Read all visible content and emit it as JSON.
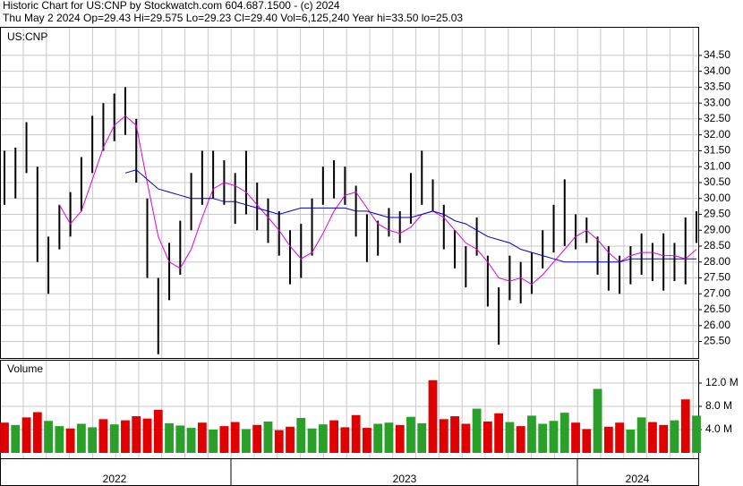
{
  "chart_data": {
    "type": "stock",
    "title": "Historic Chart for US:CNP by Stockwatch.com 604.687.1500 - (c) 2024",
    "subtitle": "Thu May  2 2024   Op=29.43   Hi=29.575   Lo=29.23   Cl=29.40   Vol=6,125,240   Year hi=33.50   lo=25.03",
    "symbol": "US:CNP",
    "volume_label": "Volume",
    "x_axis_labels": [
      "2022",
      "2023",
      "2024"
    ],
    "ylim": [
      24.98,
      35.37
    ],
    "yticks": [
      {
        "value": 25.5,
        "label": "25.50"
      },
      {
        "value": 26,
        "label": "26.00"
      },
      {
        "value": 26.5,
        "label": "26.50"
      },
      {
        "value": 27,
        "label": "27.00"
      },
      {
        "value": 27.5,
        "label": "27.50"
      },
      {
        "value": 28,
        "label": "28.00"
      },
      {
        "value": 28.5,
        "label": "28.50"
      },
      {
        "value": 29,
        "label": "29.00"
      },
      {
        "value": 29.5,
        "label": "29.50"
      },
      {
        "value": 30,
        "label": "30.00"
      },
      {
        "value": 30.5,
        "label": "30.50"
      },
      {
        "value": 31,
        "label": "31.00"
      },
      {
        "value": 31.5,
        "label": "31.50"
      },
      {
        "value": 32,
        "label": "32.00"
      },
      {
        "value": 32.5,
        "label": "32.50"
      },
      {
        "value": 33,
        "label": "33.00"
      },
      {
        "value": 33.5,
        "label": "33.50"
      },
      {
        "value": 34,
        "label": "34.00"
      },
      {
        "value": 34.5,
        "label": "34.50"
      }
    ],
    "bar_color": "#000000",
    "high": [
      31.5,
      31.6,
      32.4,
      31.0,
      28.8,
      29.8,
      30.2,
      31.3,
      32.6,
      33.0,
      33.3,
      33.5,
      32.5,
      30.0,
      27.5,
      28.6,
      29.3,
      30.8,
      31.5,
      31.5,
      31.2,
      30.8,
      31.5,
      30.5,
      30.0,
      29.6,
      29.0,
      29.2,
      30.0,
      31.0,
      31.2,
      31.0,
      30.4,
      29.5,
      29.3,
      29.7,
      29.6,
      30.8,
      31.5,
      30.6,
      29.8,
      29.0,
      28.5,
      29.4,
      28.2,
      27.2,
      28.2,
      28.0,
      28.3,
      29.0,
      29.8,
      30.6,
      29.5,
      29.4,
      28.8,
      28.5,
      28.2,
      28.5,
      28.9,
      28.6,
      28.9,
      28.6,
      29.4,
      29.6
    ],
    "low": [
      29.8,
      30.0,
      30.8,
      28.0,
      27.0,
      28.4,
      28.8,
      29.6,
      30.8,
      31.5,
      31.8,
      32.0,
      30.5,
      27.5,
      25.1,
      26.8,
      27.6,
      29.0,
      29.8,
      30.0,
      29.8,
      29.2,
      29.5,
      29.0,
      28.6,
      28.2,
      27.3,
      27.5,
      28.2,
      29.8,
      30.0,
      29.8,
      28.8,
      28.0,
      28.2,
      28.8,
      28.6,
      29.2,
      29.8,
      29.6,
      28.4,
      27.8,
      27.2,
      28.2,
      26.6,
      25.4,
      26.8,
      26.7,
      27.0,
      27.8,
      28.3,
      28.5,
      28.4,
      28.6,
      27.6,
      27.1,
      27.0,
      27.3,
      27.6,
      27.4,
      27.1,
      27.4,
      27.3,
      28.6
    ],
    "series": [
      {
        "color": "#e000e0",
        "values": [
          null,
          null,
          null,
          null,
          null,
          29.8,
          29.2,
          29.6,
          30.6,
          31.6,
          32.3,
          32.6,
          32.3,
          30.5,
          28.8,
          28.0,
          27.8,
          28.4,
          29.4,
          30.3,
          30.5,
          30.4,
          30.2,
          29.8,
          29.4,
          29.0,
          28.5,
          28.1,
          28.3,
          28.9,
          29.6,
          30.1,
          30.2,
          29.7,
          29.2,
          29.0,
          28.9,
          29.1,
          29.5,
          29.6,
          29.4,
          29.0,
          28.6,
          28.4,
          28.0,
          27.5,
          27.4,
          27.5,
          27.3,
          27.6,
          28.0,
          28.4,
          28.8,
          29.0,
          28.7,
          28.3,
          28.0,
          28.2,
          28.3,
          28.3,
          28.2,
          28.2,
          28.1,
          28.4
        ]
      },
      {
        "color": "#0000c0",
        "values": [
          null,
          null,
          null,
          null,
          null,
          null,
          null,
          null,
          null,
          null,
          null,
          30.8,
          30.9,
          30.6,
          30.3,
          30.2,
          30.1,
          30.0,
          30.0,
          30.0,
          29.9,
          29.9,
          29.8,
          29.7,
          29.6,
          29.5,
          29.6,
          29.7,
          29.7,
          29.7,
          29.7,
          29.7,
          29.6,
          29.6,
          29.5,
          29.4,
          29.4,
          29.4,
          29.5,
          29.6,
          29.5,
          29.3,
          29.2,
          29.0,
          28.8,
          28.7,
          28.6,
          28.4,
          28.3,
          28.2,
          28.1,
          28.0,
          28.0,
          28.0,
          28.0,
          28.0,
          28.0,
          28.1,
          28.1,
          28.1,
          28.1,
          28.1,
          28.1,
          28.1
        ]
      }
    ],
    "volume": {
      "values": [
        5.2,
        4.8,
        6.1,
        7.0,
        5.5,
        4.6,
        4.2,
        5.0,
        4.4,
        5.8,
        4.9,
        5.6,
        6.3,
        5.9,
        7.4,
        5.1,
        4.7,
        4.3,
        5.2,
        4.0,
        4.6,
        5.3,
        4.1,
        4.8,
        5.4,
        3.9,
        4.5,
        6.0,
        4.2,
        4.9,
        5.6,
        4.4,
        6.5,
        4.3,
        5.0,
        5.2,
        4.8,
        6.2,
        5.1,
        12.5,
        5.8,
        6.3,
        5.0,
        7.6,
        5.4,
        6.8,
        5.3,
        4.6,
        6.4,
        5.0,
        5.5,
        6.9,
        5.2,
        4.1,
        11.0,
        4.5,
        5.2,
        4.0,
        6.1,
        5.3,
        4.8,
        5.6,
        9.2,
        6.4
      ],
      "colors": [
        "#e00000",
        "#2aa02a",
        "#e00000",
        "#e00000",
        "#2aa02a",
        "#2aa02a",
        "#e00000",
        "#2aa02a",
        "#2aa02a",
        "#e00000",
        "#2aa02a",
        "#e00000",
        "#e00000",
        "#e00000",
        "#e00000",
        "#2aa02a",
        "#2aa02a",
        "#2aa02a",
        "#e00000",
        "#2aa02a",
        "#e00000",
        "#e00000",
        "#2aa02a",
        "#e00000",
        "#2aa02a",
        "#e00000",
        "#e00000",
        "#2aa02a",
        "#2aa02a",
        "#2aa02a",
        "#e00000",
        "#e00000",
        "#e00000",
        "#e00000",
        "#2aa02a",
        "#2aa02a",
        "#e00000",
        "#2aa02a",
        "#2aa02a",
        "#e00000",
        "#e00000",
        "#e00000",
        "#e00000",
        "#2aa02a",
        "#e00000",
        "#e00000",
        "#2aa02a",
        "#e00000",
        "#2aa02a",
        "#2aa02a",
        "#2aa02a",
        "#2aa02a",
        "#e00000",
        "#e00000",
        "#2aa02a",
        "#e00000",
        "#e00000",
        "#2aa02a",
        "#2aa02a",
        "#e00000",
        "#e00000",
        "#2aa02a",
        "#e00000",
        "#2aa02a"
      ],
      "ylim": [
        0,
        15.85
      ],
      "yticks": [
        {
          "value": 4,
          "label": "4.0 M"
        },
        {
          "value": 8,
          "label": "8.0 M"
        },
        {
          "value": 12,
          "label": "12.0 M"
        }
      ]
    }
  }
}
